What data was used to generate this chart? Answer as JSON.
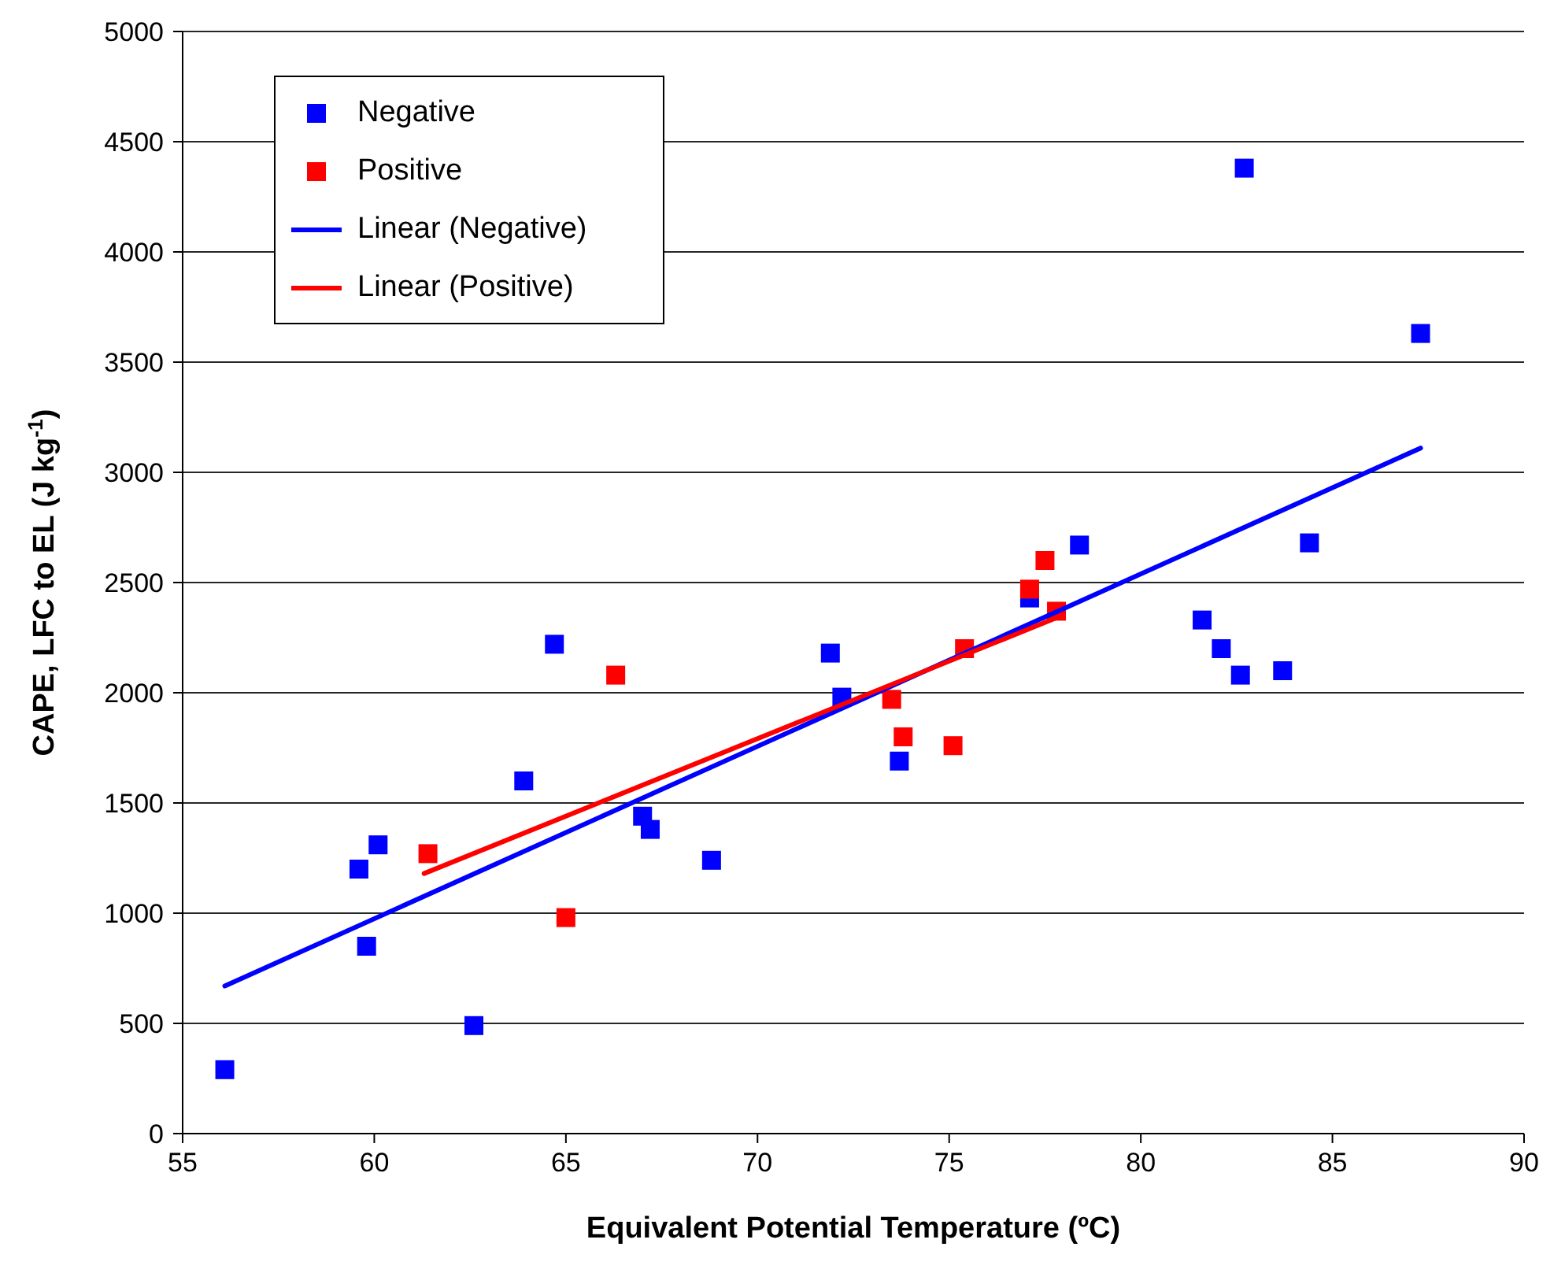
{
  "chart_data": {
    "type": "scatter",
    "xlabel": "Equivalent Potential Temperature (ºC)",
    "ylabel": "CAPE, LFC to EL (J kg$^{-1}$)",
    "xlim": [
      55,
      90
    ],
    "xticks": [
      55,
      60,
      65,
      70,
      75,
      80,
      85,
      90
    ],
    "ylim": [
      0,
      5000
    ],
    "yticks": [
      0,
      500,
      1000,
      1500,
      2000,
      2500,
      3000,
      3500,
      4000,
      4500,
      5000
    ],
    "grid": "y",
    "legend": "top left",
    "marker": "square",
    "series": [
      {
        "name": "Negative",
        "color": "#0000ff",
        "x": [
          56.1,
          59.6,
          59.8,
          60.1,
          62.6,
          63.9,
          64.7,
          67.0,
          67.2,
          68.8,
          71.9,
          72.2,
          73.7,
          77.1,
          78.4,
          81.6,
          82.1,
          82.6,
          83.7,
          84.4,
          82.7,
          87.3
        ],
        "values": [
          290,
          1200,
          850,
          1310,
          490,
          1600,
          2220,
          1440,
          1380,
          1240,
          2180,
          1980,
          1690,
          2430,
          2670,
          2330,
          2200,
          2080,
          2100,
          2680,
          4380,
          3630
        ]
      },
      {
        "name": "Positive",
        "color": "#ff0000",
        "x": [
          61.4,
          65.0,
          66.3,
          73.5,
          73.8,
          75.1,
          75.4,
          77.1,
          77.5,
          77.8
        ],
        "values": [
          1270,
          980,
          2080,
          1970,
          1800,
          1760,
          2200,
          2470,
          2600,
          2370
        ]
      },
      {
        "name": "Linear (Negative)",
        "type": "line",
        "marker": "none",
        "color": "#0000ff",
        "x": [
          56.1,
          87.3
        ],
        "values": [
          670,
          3110
        ]
      },
      {
        "name": "Linear (Positive)",
        "type": "line",
        "marker": "none",
        "color": "#ff0000",
        "x": [
          61.3,
          77.8
        ],
        "values": [
          1180,
          2340
        ]
      }
    ]
  }
}
